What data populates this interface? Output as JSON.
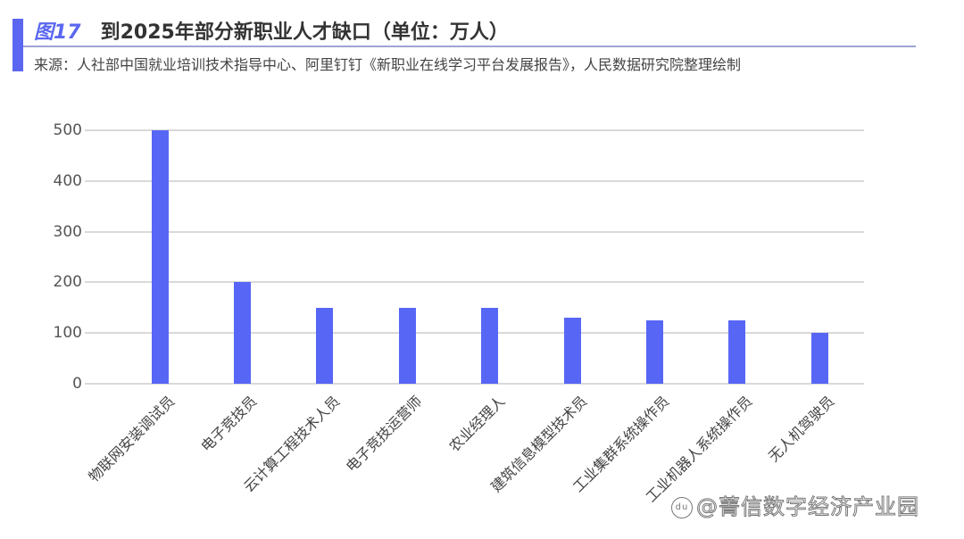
{
  "header": {
    "figure_number": "图17",
    "title": "到2025年部分新职业人才缺口（单位：万人）",
    "source": "来源：人社部中国就业培训技术指导中心、阿里钉钉《新职业在线学习平台发展报告》，人民数据研究院整理绘制"
  },
  "colors": {
    "accent": "#5B67F0",
    "bar": "#5766F5",
    "gridline": "#D9D9D9",
    "rule": "#9FA3D6"
  },
  "chart_data": {
    "type": "bar",
    "title": "到2025年部分新职业人才缺口（单位：万人）",
    "xlabel": "",
    "ylabel": "",
    "unit": "万人",
    "ylim": [
      0,
      500
    ],
    "yticks": [
      "0",
      "100",
      "200",
      "300",
      "400",
      "500"
    ],
    "grid": true,
    "legend": "none",
    "categories": [
      "物联网安装调试员",
      "电子竞技员",
      "云计算工程技术人员",
      "电子竞技运营师",
      "农业经理人",
      "建筑信息模型技术员",
      "工业集群系统操作员",
      "工业机器人系统操作员",
      "无人机驾驶员"
    ],
    "values": [
      500,
      200,
      150,
      150,
      150,
      130,
      125,
      125,
      100
    ]
  },
  "watermark": {
    "logo": "du",
    "text": "@菁信数字经济产业园"
  }
}
